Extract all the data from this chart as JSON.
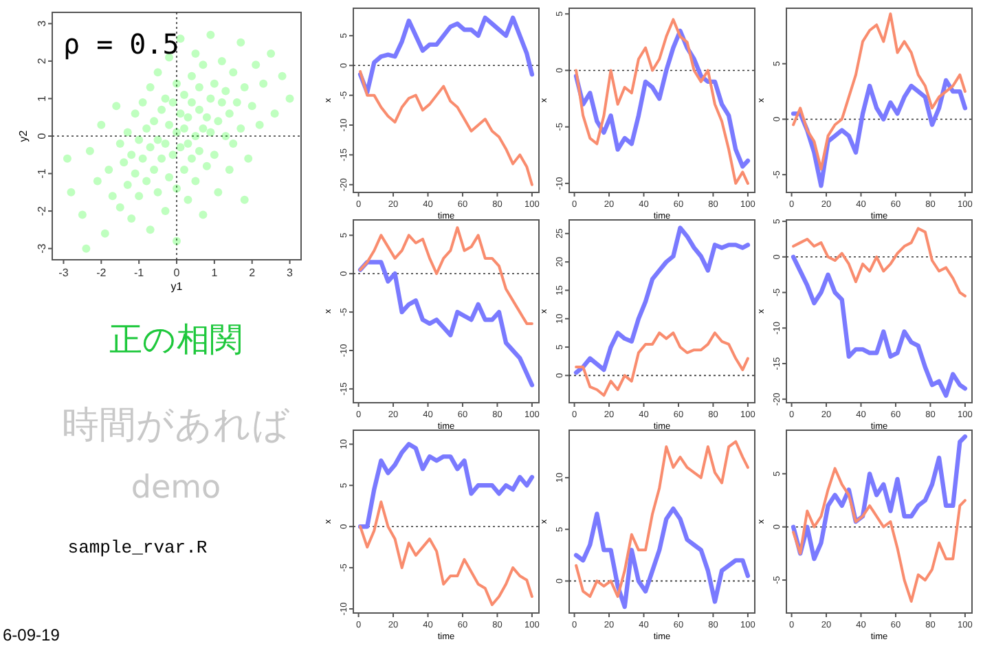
{
  "chart_data": [
    {
      "type": "scatter",
      "xlabel": "y1",
      "ylabel": "y2",
      "xlim": [
        -3.3,
        3.3
      ],
      "ylim": [
        -3.3,
        3.3
      ],
      "xticks": [
        -3,
        -2,
        -1,
        0,
        1,
        2,
        3
      ],
      "yticks": [
        -3,
        -2,
        -1,
        0,
        1,
        2,
        3
      ],
      "marker": "circle",
      "ref_lines": [
        {
          "axis": "x",
          "value": 0,
          "line_style": "dotted"
        },
        {
          "axis": "y",
          "value": 0,
          "line_style": "dotted"
        }
      ],
      "annotations": [
        "ρ = 0.5",
        "正の相関",
        "時間があれば",
        "demo",
        "sample_rvar.R",
        "6-09-19"
      ],
      "series": [
        {
          "color": "#00ff00",
          "x": [
            -2.8,
            -2.5,
            -2.3,
            -2.1,
            -2.0,
            -1.9,
            -1.8,
            -1.7,
            -1.6,
            -1.5,
            -1.5,
            -1.4,
            -1.3,
            -1.3,
            -1.2,
            -1.2,
            -1.1,
            -1.1,
            -1.0,
            -1.0,
            -0.9,
            -0.9,
            -0.8,
            -0.8,
            -0.7,
            -0.7,
            -0.7,
            -0.6,
            -0.6,
            -0.5,
            -0.5,
            -0.5,
            -0.4,
            -0.4,
            -0.3,
            -0.3,
            -0.3,
            -0.2,
            -0.2,
            -0.2,
            -0.1,
            -0.1,
            0.0,
            0.0,
            0.0,
            0.0,
            0.1,
            0.1,
            0.1,
            0.2,
            0.2,
            0.2,
            0.3,
            0.3,
            0.3,
            0.4,
            0.4,
            0.4,
            0.5,
            0.5,
            0.5,
            0.6,
            0.6,
            0.6,
            0.7,
            0.7,
            0.7,
            0.8,
            0.8,
            0.9,
            0.9,
            0.9,
            1.0,
            1.0,
            1.1,
            1.1,
            1.2,
            1.2,
            1.3,
            1.3,
            1.4,
            1.4,
            1.5,
            1.5,
            1.6,
            1.7,
            1.7,
            1.8,
            1.9,
            2.0,
            2.1,
            2.2,
            2.3,
            2.5,
            2.6,
            2.8,
            3.0,
            -2.9,
            -2.4,
            1.8
          ],
          "values": [
            -1.5,
            -2.1,
            -0.4,
            -1.2,
            0.3,
            -2.6,
            -0.9,
            -1.6,
            0.8,
            -0.2,
            -1.9,
            -0.7,
            0.1,
            -1.3,
            -2.2,
            -0.5,
            0.6,
            -1.0,
            -0.1,
            -1.6,
            0.9,
            -0.6,
            -1.2,
            0.2,
            -2.5,
            -0.3,
            1.3,
            -0.9,
            0.4,
            -1.5,
            -0.1,
            1.7,
            -0.6,
            0.7,
            -2.0,
            -0.2,
            1.0,
            -1.1,
            0.3,
            2.1,
            -0.5,
            0.9,
            -1.4,
            0.1,
            -2.8,
            1.4,
            -0.3,
            0.6,
            2.6,
            -0.9,
            0.2,
            1.1,
            -1.7,
            0.5,
            -0.2,
            1.6,
            -0.6,
            0.9,
            0.0,
            2.2,
            -1.2,
            0.7,
            -0.4,
            1.3,
            0.2,
            -2.1,
            1.9,
            0.5,
            -0.8,
            1.0,
            0.1,
            2.7,
            -0.5,
            1.4,
            0.4,
            -1.5,
            0.9,
            2.0,
            0.0,
            1.2,
            -0.9,
            0.6,
            1.7,
            -0.2,
            0.9,
            2.5,
            0.2,
            1.3,
            -0.6,
            0.8,
            1.9,
            0.3,
            1.4,
            2.2,
            0.6,
            1.6,
            1.0,
            -0.6,
            -3.0,
            -1.7
          ]
        }
      ]
    },
    {
      "type": "line",
      "xlabel": "time",
      "ylabel": "x",
      "x": [
        1,
        5,
        9,
        13,
        17,
        21,
        25,
        29,
        33,
        37,
        41,
        45,
        49,
        53,
        57,
        61,
        65,
        69,
        73,
        77,
        81,
        85,
        89,
        93,
        97,
        100
      ],
      "xlim": [
        -3,
        104
      ],
      "xticks": [
        0,
        20,
        40,
        60,
        80,
        100
      ],
      "ylim": [
        -21.3,
        9.6
      ],
      "yticks": [
        -20,
        -15,
        -10,
        -5,
        0,
        5
      ],
      "ref_lines": [
        {
          "axis": "y",
          "value": 0,
          "line_style": "dotted"
        }
      ],
      "series": [
        {
          "color": "#7a7aff",
          "values": [
            -1.5,
            -4.5,
            0.5,
            1.5,
            1.8,
            1.5,
            4,
            7.5,
            5,
            2.5,
            3.5,
            3.5,
            5,
            6.5,
            7,
            6,
            6,
            5,
            8,
            7,
            6,
            5,
            8,
            5,
            2,
            -1.5
          ]
        },
        {
          "color": "#f98c6e",
          "values": [
            -1,
            -5,
            -5,
            -7,
            -8.5,
            -9.5,
            -7,
            -5.5,
            -5,
            -7.5,
            -6.5,
            -5,
            -3.5,
            -6,
            -7,
            -9,
            -11,
            -10,
            -9,
            -11,
            -12,
            -14,
            -16.5,
            -15,
            -17,
            -20
          ]
        }
      ]
    },
    {
      "type": "line",
      "xlabel": "time",
      "ylabel": "x",
      "x": [
        1,
        5,
        9,
        13,
        17,
        21,
        25,
        29,
        33,
        37,
        41,
        45,
        49,
        53,
        57,
        61,
        65,
        69,
        73,
        77,
        81,
        85,
        89,
        93,
        97,
        100
      ],
      "xlim": [
        -3,
        104
      ],
      "xticks": [
        0,
        20,
        40,
        60,
        80,
        100
      ],
      "ylim": [
        -10.8,
        5.5
      ],
      "yticks": [
        -10,
        -5,
        0,
        5
      ],
      "ref_lines": [
        {
          "axis": "y",
          "value": 0,
          "line_style": "dotted"
        }
      ],
      "series": [
        {
          "color": "#7a7aff",
          "values": [
            -0.5,
            -3,
            -2,
            -4.5,
            -5.5,
            -4,
            -7,
            -6,
            -6.5,
            -4,
            -1,
            -1.5,
            -2.5,
            0,
            2,
            3.5,
            2,
            1,
            -0.5,
            -1,
            -1,
            -3,
            -4,
            -7,
            -8.5,
            -8
          ]
        },
        {
          "color": "#f98c6e",
          "values": [
            0,
            -4,
            -6,
            -6.5,
            -4,
            0,
            -3,
            -1.5,
            -2,
            1,
            2,
            0,
            1,
            3,
            4.5,
            3,
            2.5,
            0,
            -1,
            0,
            -3,
            -4.5,
            -7,
            -10,
            -9,
            -10
          ]
        }
      ]
    },
    {
      "type": "line",
      "xlabel": "time",
      "ylabel": "x",
      "x": [
        1,
        5,
        9,
        13,
        17,
        21,
        25,
        29,
        33,
        37,
        41,
        45,
        49,
        53,
        57,
        61,
        65,
        69,
        73,
        77,
        81,
        85,
        89,
        93,
        97,
        100
      ],
      "xlim": [
        -3,
        104
      ],
      "xticks": [
        0,
        20,
        40,
        60,
        80,
        100
      ],
      "ylim": [
        -6.6,
        10
      ],
      "yticks": [
        -5,
        0,
        5
      ],
      "ref_lines": [
        {
          "axis": "y",
          "value": 0,
          "line_style": "dotted"
        }
      ],
      "series": [
        {
          "color": "#7a7aff",
          "values": [
            0.5,
            0.5,
            -1,
            -3,
            -6,
            -2,
            -1.5,
            -1,
            -1.5,
            -3,
            0.5,
            3,
            1,
            0,
            1.5,
            0.5,
            2,
            3,
            2.5,
            2,
            -0.5,
            1,
            3.5,
            2.5,
            2.5,
            1
          ]
        },
        {
          "color": "#f98c6e",
          "values": [
            -0.5,
            1,
            -1,
            -2,
            -4.5,
            -1.5,
            -0.5,
            0,
            2,
            4,
            7,
            8,
            8.5,
            7,
            9.5,
            6,
            7,
            6,
            4,
            3,
            1,
            2,
            2.5,
            3,
            4,
            2.5
          ]
        }
      ]
    },
    {
      "type": "line",
      "xlabel": "time",
      "ylabel": "x",
      "x": [
        1,
        5,
        9,
        13,
        17,
        21,
        25,
        29,
        33,
        37,
        41,
        45,
        49,
        53,
        57,
        61,
        65,
        69,
        73,
        77,
        81,
        85,
        89,
        93,
        97,
        100
      ],
      "xlim": [
        -3,
        104
      ],
      "xticks": [
        0,
        20,
        40,
        60,
        80,
        100
      ],
      "ylim": [
        -16.8,
        7
      ],
      "yticks": [
        -15,
        -10,
        -5,
        0,
        5
      ],
      "ref_lines": [
        {
          "axis": "y",
          "value": 0,
          "line_style": "dotted"
        }
      ],
      "series": [
        {
          "color": "#7a7aff",
          "values": [
            0.5,
            1.5,
            1.5,
            1.5,
            -1,
            0,
            -5,
            -4,
            -3.5,
            -6,
            -6.5,
            -6,
            -7,
            -8,
            -5,
            -5.5,
            -6,
            -4,
            -6,
            -6,
            -5,
            -9,
            -10,
            -11,
            -13,
            -14.5
          ]
        },
        {
          "color": "#f98c6e",
          "values": [
            0.5,
            1.5,
            3,
            5,
            3.5,
            2,
            3,
            5,
            4,
            4.5,
            2,
            0,
            2,
            3,
            6,
            3,
            3.5,
            5,
            2,
            2,
            1,
            -2,
            -3.5,
            -5,
            -6.5,
            -6.5
          ]
        }
      ]
    },
    {
      "type": "line",
      "xlabel": "time",
      "ylabel": "x",
      "x": [
        1,
        5,
        9,
        13,
        17,
        21,
        25,
        29,
        33,
        37,
        41,
        45,
        49,
        53,
        57,
        61,
        65,
        69,
        73,
        77,
        81,
        85,
        89,
        93,
        97,
        100
      ],
      "xlim": [
        -3,
        104
      ],
      "xticks": [
        0,
        20,
        40,
        60,
        80,
        100
      ],
      "ylim": [
        -4.8,
        27.4
      ],
      "yticks": [
        0,
        5,
        10,
        15,
        20,
        25
      ],
      "ref_lines": [
        {
          "axis": "y",
          "value": 0,
          "line_style": "dotted"
        }
      ],
      "series": [
        {
          "color": "#7a7aff",
          "values": [
            0.5,
            1.5,
            3,
            2,
            1,
            5,
            7.5,
            6.5,
            6,
            10,
            13,
            17,
            18.5,
            20,
            21,
            26,
            24.5,
            22.5,
            21,
            18.5,
            23,
            22.5,
            23,
            23,
            22.5,
            23
          ]
        },
        {
          "color": "#f98c6e",
          "values": [
            1.5,
            1.5,
            -2,
            -2.5,
            -3.5,
            -1,
            -2.5,
            0,
            -1,
            4,
            5.5,
            5.5,
            7.5,
            6.5,
            7.5,
            5,
            4,
            4.5,
            4.5,
            5.5,
            7.5,
            6,
            5.5,
            3,
            1,
            3
          ]
        }
      ]
    },
    {
      "type": "line",
      "xlabel": "time",
      "ylabel": "x",
      "x": [
        1,
        5,
        9,
        13,
        17,
        21,
        25,
        29,
        33,
        37,
        41,
        45,
        49,
        53,
        57,
        61,
        65,
        69,
        73,
        77,
        81,
        85,
        89,
        93,
        97,
        100
      ],
      "xlim": [
        -3,
        104
      ],
      "xticks": [
        0,
        20,
        40,
        60,
        80,
        100
      ],
      "ylim": [
        -20.5,
        5.2
      ],
      "yticks": [
        -20,
        -15,
        -10,
        -5,
        0,
        5
      ],
      "ref_lines": [
        {
          "axis": "y",
          "value": 0,
          "line_style": "dotted"
        }
      ],
      "series": [
        {
          "color": "#7a7aff",
          "values": [
            0,
            -2,
            -4,
            -6.5,
            -5,
            -2.5,
            -5,
            -6,
            -14,
            -13,
            -13,
            -13.5,
            -13.5,
            -10.5,
            -14,
            -13.5,
            -10.5,
            -12,
            -12.5,
            -15.5,
            -18,
            -17.5,
            -19.5,
            -16.5,
            -18,
            -18.5
          ]
        },
        {
          "color": "#f98c6e",
          "values": [
            1.5,
            2,
            2.5,
            1.5,
            2,
            0,
            -0.5,
            0.5,
            -1,
            -3.5,
            -1,
            -2,
            0,
            -2,
            -1,
            0.5,
            1.5,
            2,
            4,
            3.5,
            -0.5,
            -2,
            -1.5,
            -3,
            -5,
            -5.5
          ]
        }
      ]
    },
    {
      "type": "line",
      "xlabel": "time",
      "ylabel": "x",
      "x": [
        1,
        5,
        9,
        13,
        17,
        21,
        25,
        29,
        33,
        37,
        41,
        45,
        49,
        53,
        57,
        61,
        65,
        69,
        73,
        77,
        81,
        85,
        89,
        93,
        97,
        100
      ],
      "xlim": [
        -3,
        104
      ],
      "xticks": [
        0,
        20,
        40,
        60,
        80,
        100
      ],
      "ylim": [
        -10.5,
        11.7
      ],
      "yticks": [
        -10,
        -5,
        0,
        5,
        10
      ],
      "ref_lines": [
        {
          "axis": "y",
          "value": 0,
          "line_style": "dotted"
        }
      ],
      "series": [
        {
          "color": "#7a7aff",
          "values": [
            0,
            0,
            4.5,
            8,
            6.5,
            7.5,
            9,
            10,
            9.5,
            7,
            8.5,
            8,
            8.5,
            8.5,
            7,
            8,
            4,
            5,
            5,
            5,
            4,
            5,
            4.5,
            6,
            5,
            6
          ]
        },
        {
          "color": "#f98c6e",
          "values": [
            0,
            -2.5,
            -0.5,
            3,
            0,
            -1.5,
            -5,
            -2,
            -3.5,
            -2.5,
            -1.5,
            -3,
            -7,
            -6,
            -6,
            -4,
            -5.5,
            -7,
            -7.5,
            -9.5,
            -8.5,
            -7,
            -5,
            -6,
            -6.5,
            -8.5
          ]
        }
      ]
    },
    {
      "type": "line",
      "xlabel": "time",
      "ylabel": "x",
      "x": [
        1,
        5,
        9,
        13,
        17,
        21,
        25,
        29,
        33,
        37,
        41,
        45,
        49,
        53,
        57,
        61,
        65,
        69,
        73,
        77,
        81,
        85,
        89,
        93,
        97,
        100
      ],
      "xlim": [
        -3,
        104
      ],
      "xticks": [
        0,
        20,
        40,
        60,
        80,
        100
      ],
      "ylim": [
        -3.1,
        14.6
      ],
      "yticks": [
        0,
        5,
        10
      ],
      "ref_lines": [
        {
          "axis": "y",
          "value": 0,
          "line_style": "dotted"
        }
      ],
      "series": [
        {
          "color": "#7a7aff",
          "values": [
            2.5,
            2,
            3.5,
            6.5,
            3,
            3,
            -0.5,
            -2.5,
            3,
            0,
            -1,
            1,
            3,
            6,
            7,
            6,
            4,
            3.5,
            3,
            1,
            -2,
            1,
            1.5,
            2,
            2,
            0.5
          ]
        },
        {
          "color": "#f98c6e",
          "values": [
            1.5,
            -1,
            -1.5,
            0,
            -0.5,
            0,
            -1.5,
            1,
            4.5,
            3,
            3,
            6.5,
            9,
            13,
            11,
            12,
            11,
            10.5,
            10,
            13,
            10.5,
            9.5,
            13,
            13.5,
            12,
            11
          ]
        }
      ]
    },
    {
      "type": "line",
      "xlabel": "time",
      "ylabel": "x",
      "x": [
        1,
        5,
        9,
        13,
        17,
        21,
        25,
        29,
        33,
        37,
        41,
        45,
        49,
        53,
        57,
        61,
        65,
        69,
        73,
        77,
        81,
        85,
        89,
        93,
        97,
        100
      ],
      "xlim": [
        -3,
        104
      ],
      "xticks": [
        0,
        20,
        40,
        60,
        80,
        100
      ],
      "ylim": [
        -8.1,
        9.1
      ],
      "yticks": [
        -5,
        0,
        5
      ],
      "ref_lines": [
        {
          "axis": "y",
          "value": 0,
          "line_style": "dotted"
        }
      ],
      "series": [
        {
          "color": "#7a7aff",
          "values": [
            0,
            -2.5,
            0,
            -3,
            -1.5,
            2,
            3,
            2,
            3.5,
            0.5,
            1,
            5,
            3,
            4,
            1.5,
            4.5,
            1,
            1,
            2,
            2.5,
            4,
            6.5,
            2,
            2,
            8,
            8.5
          ]
        },
        {
          "color": "#f98c6e",
          "values": [
            -0.5,
            -2.5,
            1.5,
            0,
            1,
            3.5,
            5.5,
            4,
            3,
            0.5,
            1,
            2,
            1,
            0,
            0.5,
            -2,
            -5,
            -7,
            -4.5,
            -5,
            -4,
            -1.5,
            -3,
            -3,
            2,
            2.5
          ]
        }
      ]
    }
  ]
}
